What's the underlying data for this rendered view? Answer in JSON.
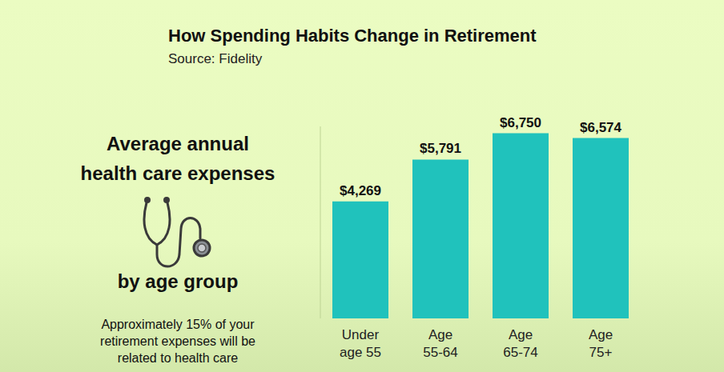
{
  "chart_data": {
    "type": "bar",
    "title": "How Spending Habits Change in Retirement",
    "subtitle": "Source: Fidelity",
    "categories": [
      "Under age 55",
      "Age 55-64",
      "Age 65-74",
      "Age 75+"
    ],
    "values": [
      4269,
      5791,
      6750,
      6574
    ],
    "value_labels": [
      "$4,269",
      "$5,791",
      "$6,750",
      "$6,574"
    ],
    "color": "#20c2bc",
    "ylim": [
      0,
      7000
    ],
    "grid": false,
    "data_labels": true,
    "tick_labels": "x",
    "annotations": [
      "Average annual",
      "health care expenses",
      "by age group",
      "Approximately 15% of your",
      "retirement expenses will be",
      "related to health care"
    ]
  }
}
